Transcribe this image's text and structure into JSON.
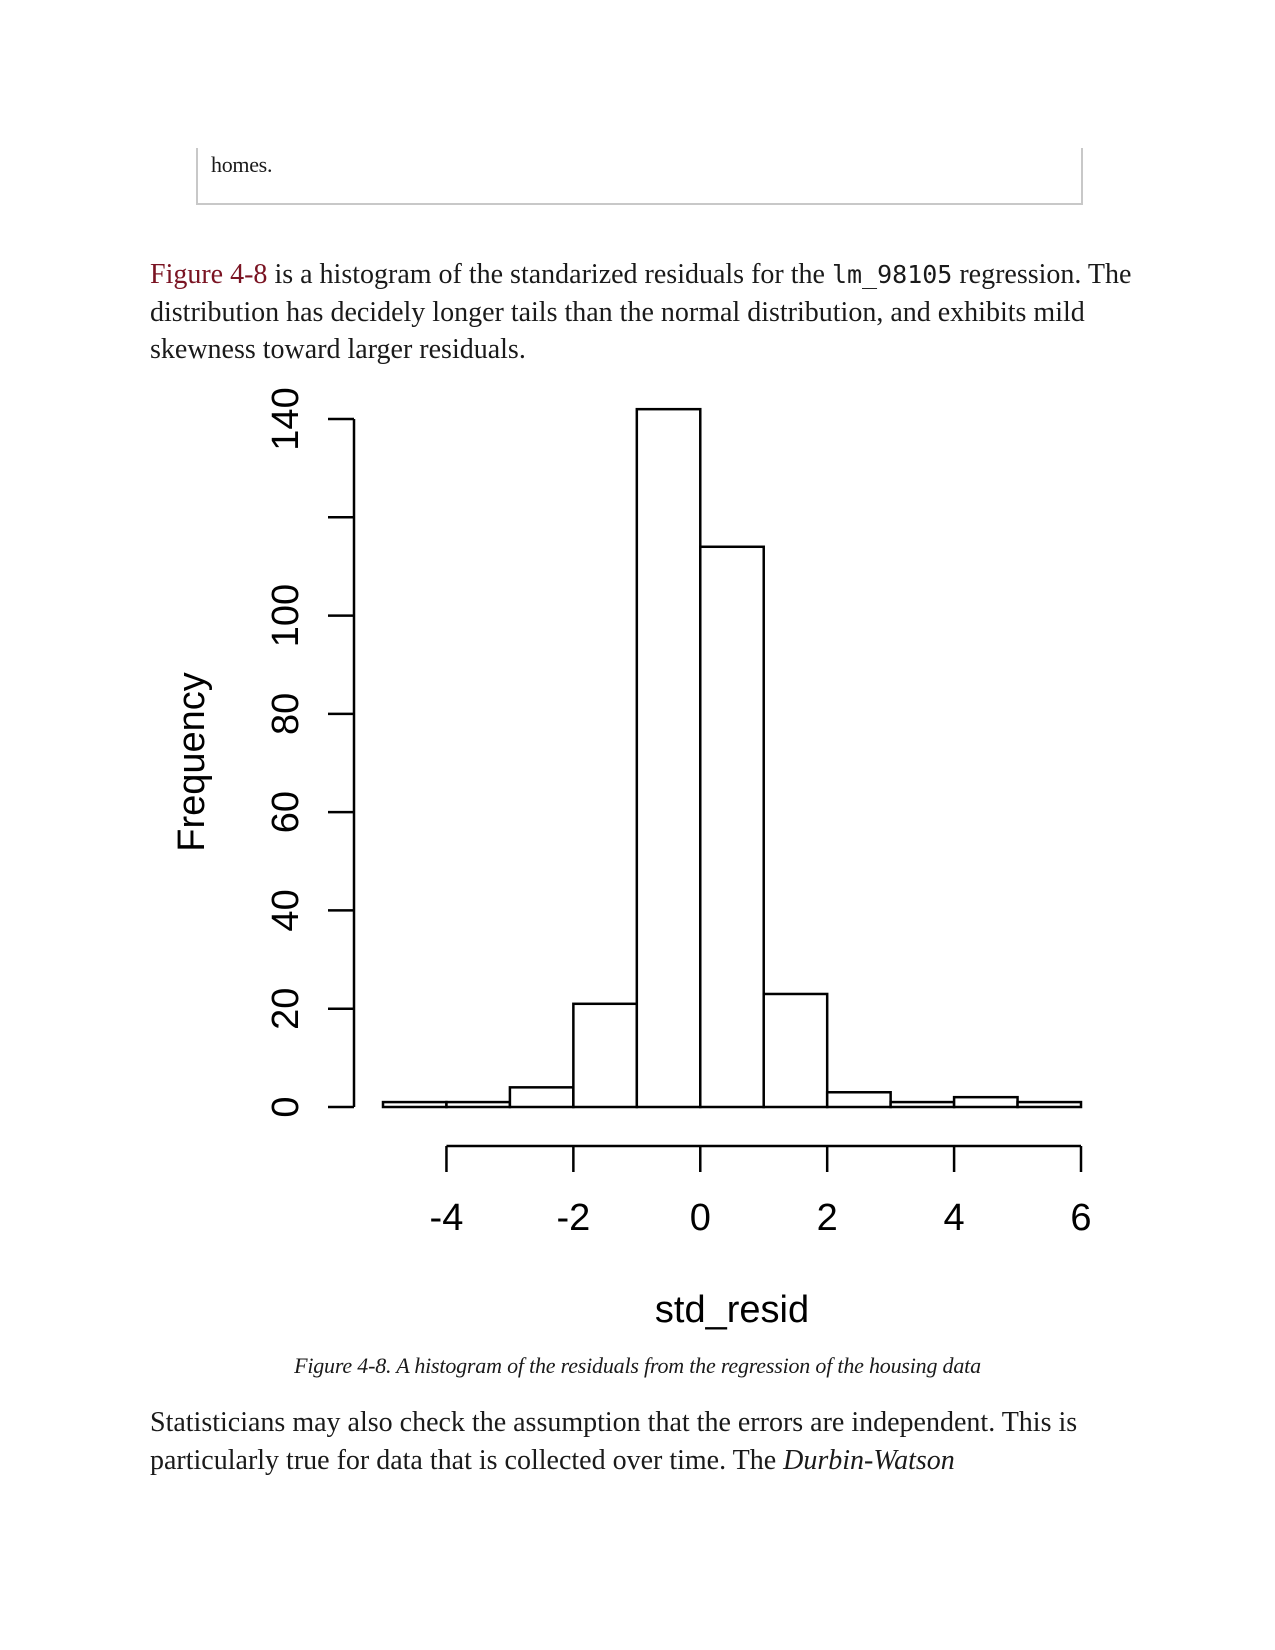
{
  "sidebar": {
    "text": "homes."
  },
  "paragraph1": {
    "xref": "Figure 4-8",
    "text_a": " is a histogram of the standarized residuals for the ",
    "code": "lm_98105",
    "text_b": " regression. The distribution has decidely longer tails than the normal distribution, and exhibits mild skewness toward larger residuals."
  },
  "chart_data": {
    "type": "bar",
    "xlabel": "std_resid",
    "ylabel": "Frequency",
    "bins": [
      {
        "x0": -5,
        "x1": -4,
        "count": 1
      },
      {
        "x0": -4,
        "x1": -3,
        "count": 1
      },
      {
        "x0": -3,
        "x1": -2,
        "count": 4
      },
      {
        "x0": -2,
        "x1": -1,
        "count": 21
      },
      {
        "x0": -1,
        "x1": 0,
        "count": 142
      },
      {
        "x0": 0,
        "x1": 1,
        "count": 114
      },
      {
        "x0": 1,
        "x1": 2,
        "count": 23
      },
      {
        "x0": 2,
        "x1": 3,
        "count": 3
      },
      {
        "x0": 3,
        "x1": 4,
        "count": 1
      },
      {
        "x0": 4,
        "x1": 5,
        "count": 2
      },
      {
        "x0": 5,
        "x1": 6,
        "count": 1
      }
    ],
    "xticks": [
      -4,
      -2,
      0,
      2,
      4,
      6
    ],
    "yticks": [
      0,
      20,
      40,
      60,
      80,
      100,
      120,
      140
    ],
    "ytick_labels": [
      "0",
      "20",
      "40",
      "60",
      "80",
      "100",
      "",
      "140"
    ],
    "xlim": [
      -5,
      6
    ],
    "ylim": [
      0,
      140
    ],
    "grid": false
  },
  "caption": "Figure 4-8. A histogram of the residuals from the regression of the housing data",
  "paragraph2": {
    "text_a": "Statisticians may also check the assumption that the errors are independent. This is particularly true for data that is collected over time. The ",
    "em": "Durbin-Watson"
  }
}
